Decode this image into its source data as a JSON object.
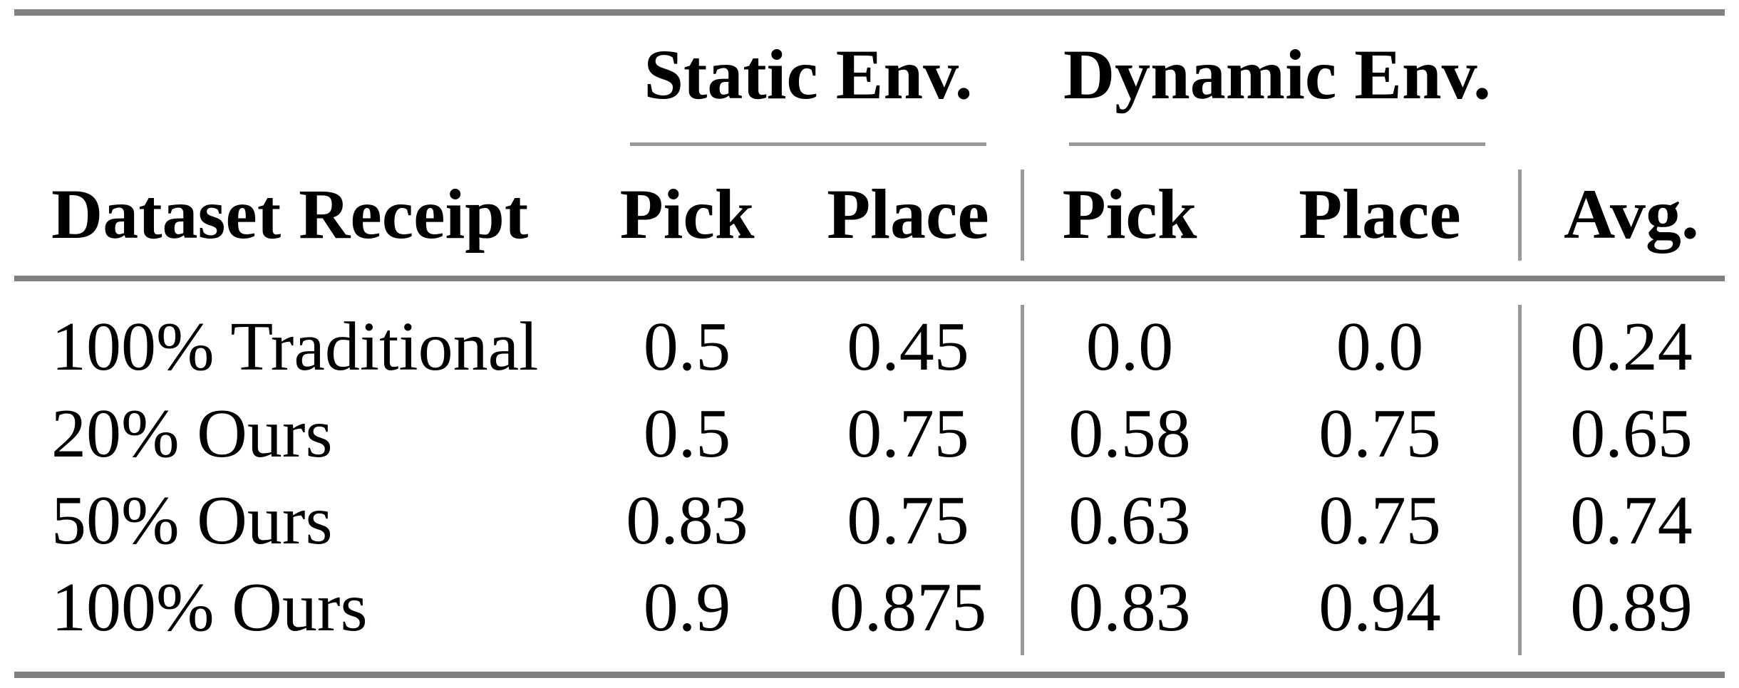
{
  "table": {
    "group_headers": [
      {
        "label": "Static Env."
      },
      {
        "label": "Dynamic Env."
      }
    ],
    "columns": [
      "Dataset Receipt",
      "Pick",
      "Place",
      "Pick",
      "Place",
      "Avg."
    ],
    "rows": [
      {
        "cells": [
          "100% Traditional",
          "0.5",
          "0.45",
          "0.0",
          "0.0",
          "0.24"
        ]
      },
      {
        "cells": [
          "20% Ours",
          "0.5",
          "0.75",
          "0.58",
          "0.75",
          "0.65"
        ]
      },
      {
        "cells": [
          "50% Ours",
          "0.83",
          "0.75",
          "0.63",
          "0.75",
          "0.74"
        ]
      },
      {
        "cells": [
          "100% Ours",
          "0.9",
          "0.875",
          "0.83",
          "0.94",
          "0.89"
        ]
      }
    ],
    "colors": {
      "text": "#000000",
      "thick_rule": "#808080",
      "thin_rule": "#999999",
      "background": "#ffffff"
    }
  }
}
